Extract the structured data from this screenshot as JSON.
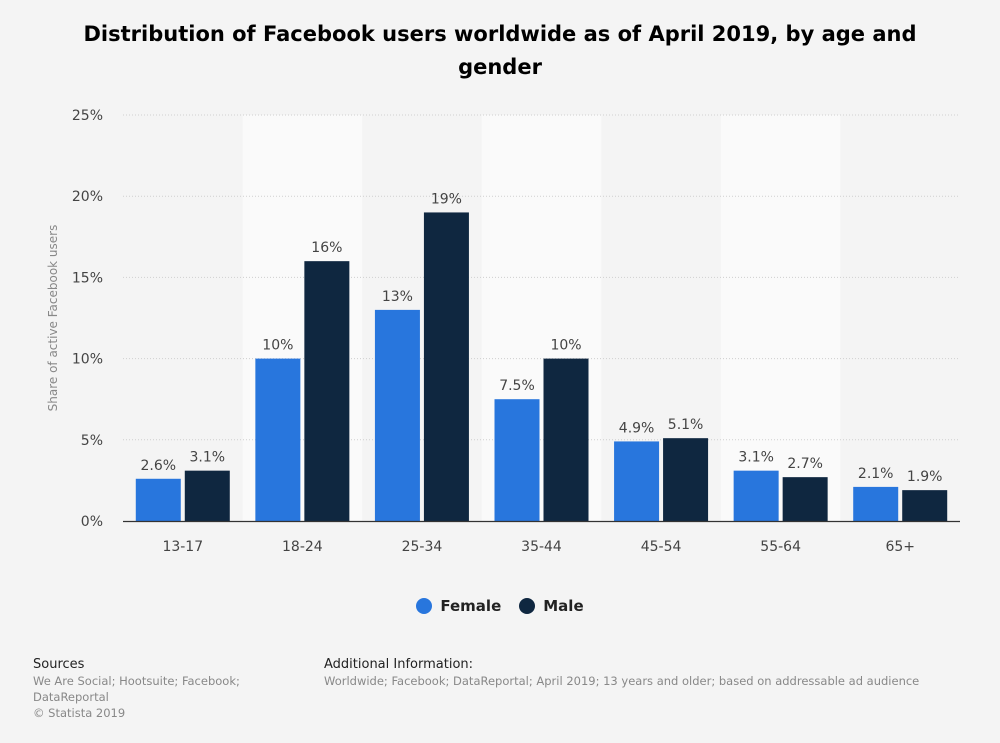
{
  "title": "Distribution of Facebook users worldwide as of April 2019, by age and gender",
  "colors": {
    "female": "#2876dd",
    "male": "#0f2740",
    "background": "#f4f4f4",
    "band": "#fafafa",
    "grid": "#cfcfcf",
    "axis_text": "#444444"
  },
  "legend": {
    "female": "Female",
    "male": "Male"
  },
  "sources": {
    "heading": "Sources",
    "line1": "We Are Social; Hootsuite; Facebook;",
    "line2": "DataReportal",
    "line3": "© Statista 2019"
  },
  "additional_info": {
    "heading": "Additional Information:",
    "text": "Worldwide; Facebook; DataReportal; April 2019; 13 years and older; based on addressable ad audience"
  },
  "chart_data": {
    "type": "bar",
    "title": "Distribution of Facebook users worldwide as of April 2019, by age and gender",
    "xlabel": "",
    "ylabel": "Share of active Facebook users",
    "ylim": [
      0,
      25
    ],
    "yticks": [
      0,
      5,
      10,
      15,
      20,
      25
    ],
    "ytick_labels": [
      "0%",
      "5%",
      "10%",
      "15%",
      "20%",
      "25%"
    ],
    "grid": true,
    "legend_position": "bottom",
    "categories": [
      "13-17",
      "18-24",
      "25-34",
      "35-44",
      "45-54",
      "55-64",
      "65+"
    ],
    "series": [
      {
        "name": "Female",
        "values": [
          2.6,
          10,
          13,
          7.5,
          4.9,
          3.1,
          2.1
        ],
        "labels": [
          "2.6%",
          "10%",
          "13%",
          "7.5%",
          "4.9%",
          "3.1%",
          "2.1%"
        ]
      },
      {
        "name": "Male",
        "values": [
          3.1,
          16,
          19,
          10,
          5.1,
          2.7,
          1.9
        ],
        "labels": [
          "3.1%",
          "16%",
          "19%",
          "10%",
          "5.1%",
          "2.7%",
          "1.9%"
        ]
      }
    ]
  }
}
